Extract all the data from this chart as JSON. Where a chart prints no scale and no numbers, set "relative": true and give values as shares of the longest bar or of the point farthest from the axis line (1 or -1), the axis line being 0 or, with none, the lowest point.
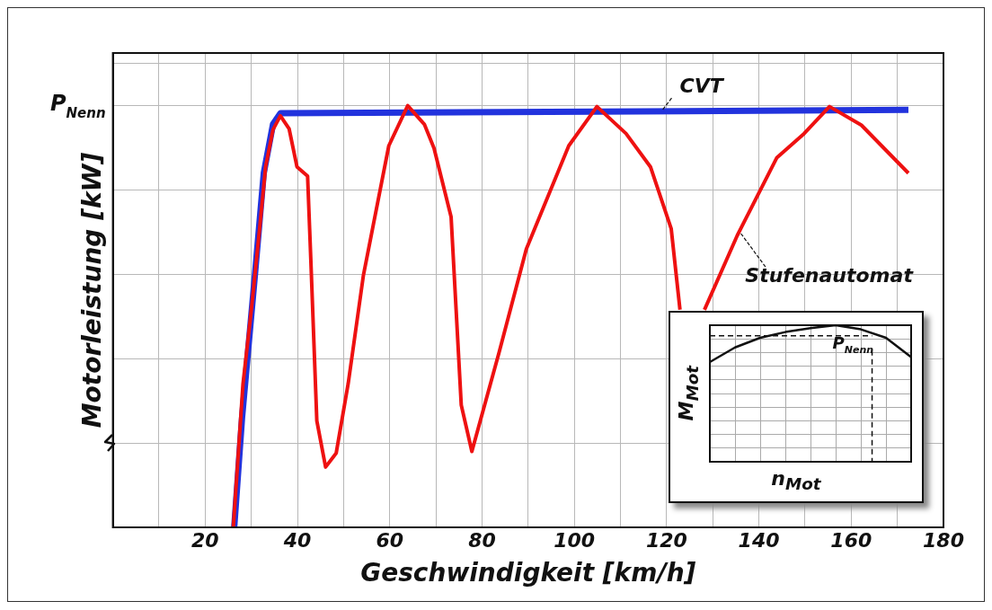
{
  "chart_data": [
    {
      "type": "line",
      "xlabel": "Geschwindigkeit [km/h]",
      "ylabel": "Motorleistung [kW]",
      "relative": true,
      "xlim": [
        0,
        180
      ],
      "xticks": [
        {
          "value": 10,
          "label": null
        },
        20,
        {
          "value": 30,
          "label": null
        },
        40,
        {
          "value": 50,
          "label": null
        },
        60,
        {
          "value": 70,
          "label": null
        },
        80,
        {
          "value": 90,
          "label": null
        },
        100,
        {
          "value": 110,
          "label": null
        },
        120,
        {
          "value": 130,
          "label": null
        },
        140,
        {
          "value": 150,
          "label": null
        },
        160,
        {
          "value": 170,
          "label": null
        },
        180
      ],
      "grid": true,
      "annotations": [
        "P$_{Nenn}$"
      ],
      "series": [
        {
          "name": "CVT",
          "color": "#2233dd",
          "x": [
            26.3,
            28,
            30.8,
            32.7,
            34.7,
            36.3,
            172.4
          ],
          "values": [
            0,
            0.26,
            0.6,
            0.84,
            0.956,
            0.982,
            0.99
          ]
        },
        {
          "name": "Stufenautomat",
          "color": "#ee1111",
          "x": [
            26.1,
            28.2,
            30.1,
            31.8,
            33.1,
            34.7,
            36.3,
            38.2,
            39.9,
            42.2,
            42.9,
            44.2,
            46.1,
            48.4,
            51.0,
            54.3,
            59.8,
            63.9,
            67.5,
            69.6,
            73.3,
            75.5,
            77.8,
            83.7,
            89.6,
            98.8,
            104.9,
            111.2,
            116.5,
            121,
            122.9,
            125,
            128.2,
            135.3,
            143.9,
            149.8,
            155.3,
            162.2,
            172.4
          ],
          "values": [
            0,
            0.34,
            0.525,
            0.708,
            0.855,
            0.943,
            0.976,
            0.945,
            0.855,
            0.833,
            0.635,
            0.253,
            0.143,
            0.176,
            0.341,
            0.598,
            0.905,
            1,
            0.956,
            0.899,
            0.736,
            0.29,
            0.18,
            0.415,
            0.66,
            0.905,
            0.998,
            0.934,
            0.855,
            0.708,
            0.516,
            null,
            0.516,
            0.692,
            0.877,
            0.934,
            0.998,
            0.954,
            0.84
          ]
        }
      ]
    },
    {
      "type": "line",
      "xlabel": "n$_{Mot}$",
      "ylabel": "M$_{Mot}$",
      "relative": true,
      "categories": [
        null,
        null,
        null,
        null,
        null,
        null,
        null,
        null,
        null
      ],
      "grid": true,
      "series": [
        {
          "color": "#111111",
          "values": [
            0.73,
            0.837,
            0.908,
            0.95,
            0.979,
            1,
            0.97,
            0.908,
            0.766
          ]
        }
      ],
      "ref_lines": [
        {
          "axis": "y",
          "value": 0.922,
          "label": "P$_{Nenn}$",
          "line_style": "dashed"
        }
      ]
    }
  ]
}
